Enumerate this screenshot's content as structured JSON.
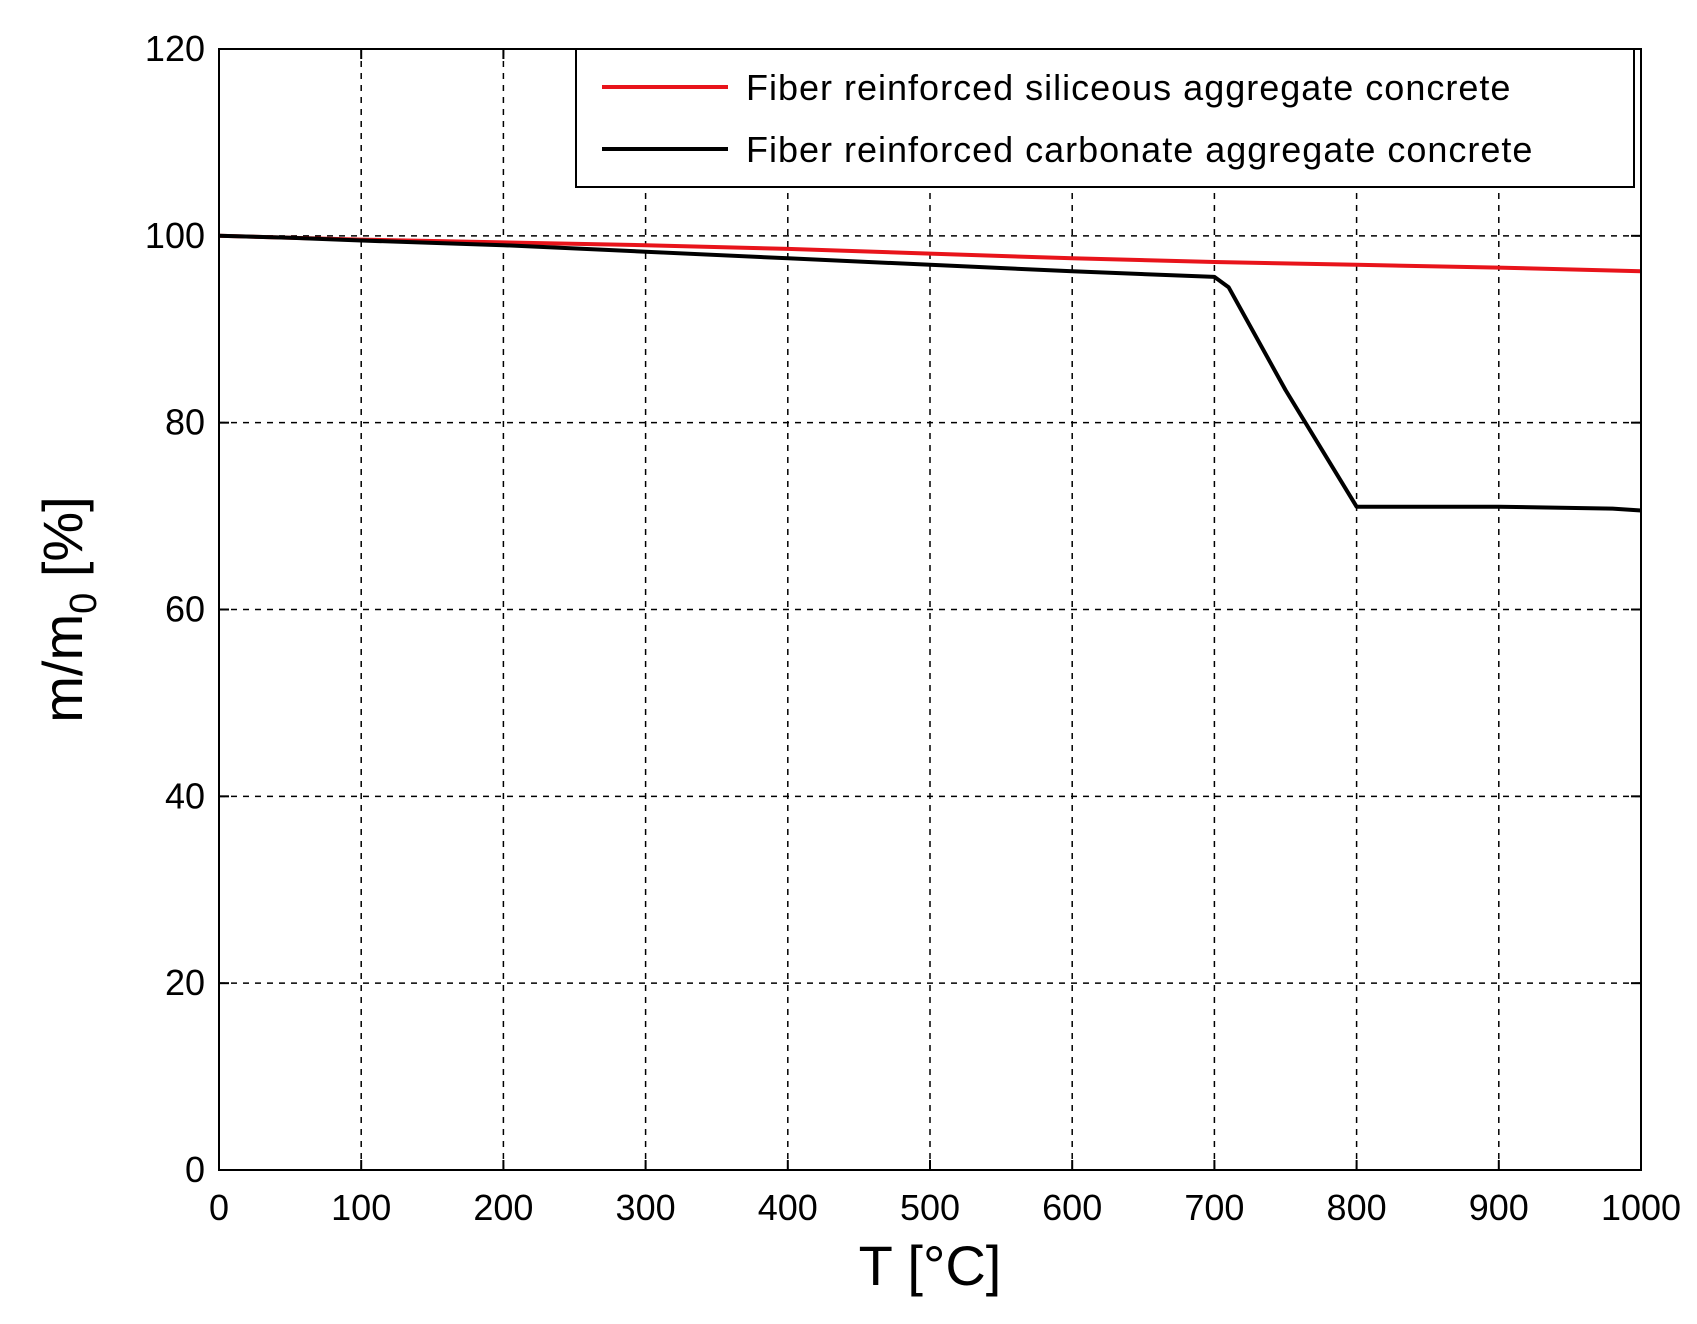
{
  "chart_data": {
    "type": "line",
    "xlabel": "T [°C]",
    "ylabel_main": "m/m",
    "ylabel_sub": "0",
    "ylabel_unit": " [%]",
    "xlim": [
      0,
      1000
    ],
    "ylim": [
      0,
      120
    ],
    "x_ticks": [
      0,
      100,
      200,
      300,
      400,
      500,
      600,
      700,
      800,
      900,
      1000
    ],
    "y_ticks": [
      0,
      20,
      40,
      60,
      80,
      100,
      120
    ],
    "grid": true,
    "legend_position": "top-right",
    "series": [
      {
        "name": "Fiber reinforced siliceous aggregate concrete",
        "color": "#e8141b",
        "x": [
          0,
          50,
          100,
          200,
          300,
          400,
          500,
          600,
          700,
          800,
          900,
          1000
        ],
        "y": [
          100,
          99.8,
          99.6,
          99.3,
          99.0,
          98.6,
          98.1,
          97.6,
          97.2,
          96.9,
          96.6,
          96.2
        ]
      },
      {
        "name": "Fiber reinforced carbonate aggregate concrete",
        "color": "#000000",
        "x": [
          0,
          50,
          100,
          200,
          300,
          400,
          500,
          600,
          700,
          710,
          750,
          800,
          900,
          980,
          1000
        ],
        "y": [
          100,
          99.8,
          99.5,
          99.0,
          98.3,
          97.6,
          96.9,
          96.2,
          95.6,
          94.5,
          83.5,
          71.0,
          71.0,
          70.8,
          70.6
        ]
      }
    ]
  }
}
